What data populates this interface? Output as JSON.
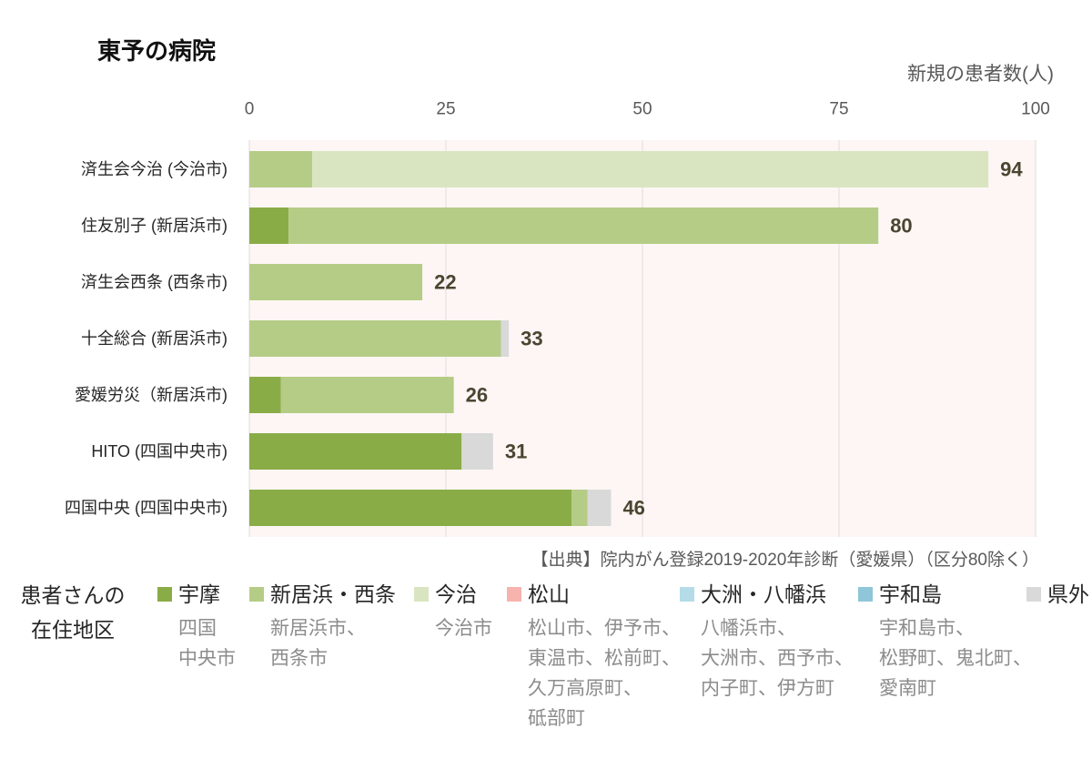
{
  "source": "【出典】院内がん登録2019-2020年診断（愛媛県）（区分80除く）",
  "legend": {
    "heading": [
      "患者さんの",
      "在住地区"
    ],
    "areas": [
      [
        "四国",
        "中央市"
      ],
      [
        "新居浜市、",
        "西条市"
      ],
      [
        "今治市"
      ],
      [
        "松山市、伊予市、",
        "東温市、松前町、",
        "久万高原町、",
        "砥部町"
      ],
      [
        "八幡浜市、",
        "大洲市、西予市、",
        "内子町、伊方町"
      ],
      [
        "宇和島市、",
        "松野町、鬼北町、",
        "愛南町"
      ],
      []
    ]
  },
  "chart_data": {
    "type": "bar",
    "orientation": "horizontal",
    "stacked": true,
    "title": "東予の病院",
    "xlabel": "新規の患者数(人)",
    "xlim": [
      0,
      100
    ],
    "xticks": [
      0,
      25,
      50,
      75,
      100
    ],
    "x_axis_position": "top",
    "grid": true,
    "legend_position": "bottom",
    "categories": [
      "済生会今治 (今治市)",
      "住友別子 (新居浜市)",
      "済生会西条 (西条市)",
      "十全総合 (新居浜市)",
      "愛媛労災（新居浜市)",
      "HITO (四国中央市)",
      "四国中央 (四国中央市)"
    ],
    "series": [
      {
        "name": "宇摩",
        "color": "#8aac47",
        "values": [
          0,
          5,
          0,
          0,
          4,
          27,
          41
        ]
      },
      {
        "name": "新居浜・西条",
        "color": "#b5cc86",
        "values": [
          8,
          75,
          22,
          32,
          22,
          0,
          2
        ]
      },
      {
        "name": "今治",
        "color": "#d9e5c1",
        "values": [
          86,
          0,
          0,
          0,
          0,
          0,
          0
        ]
      },
      {
        "name": "松山",
        "color": "#f7b3ae",
        "values": [
          0,
          0,
          0,
          0,
          0,
          0,
          0
        ]
      },
      {
        "name": "大洲・八幡浜",
        "color": "#b4dbe7",
        "values": [
          0,
          0,
          0,
          0,
          0,
          0,
          0
        ]
      },
      {
        "name": "宇和島",
        "color": "#8fc6d9",
        "values": [
          0,
          0,
          0,
          0,
          0,
          0,
          0
        ]
      },
      {
        "name": "県外",
        "color": "#d9d9d9",
        "values": [
          0,
          0,
          0,
          1,
          0,
          4,
          3
        ]
      }
    ],
    "totals": [
      94,
      80,
      22,
      33,
      26,
      31,
      46
    ],
    "plot_background": "#fdf6f5",
    "grid_color": "#dddddd",
    "value_label_color": "#4a4530"
  }
}
